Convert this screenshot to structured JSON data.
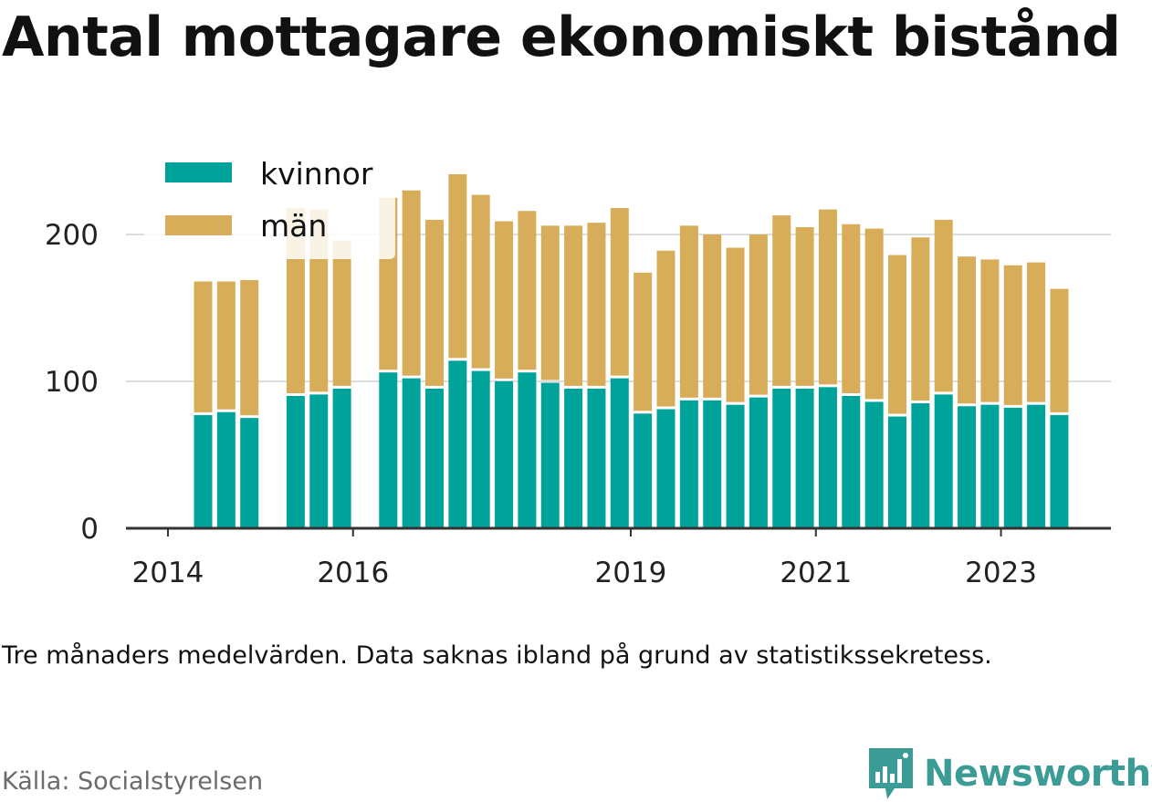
{
  "title": "Antal mottagare ekonomiskt bistånd",
  "note": "Tre månaders medelvärden. Data saknas ibland på grund av statistikssekretess.",
  "source": "Källa: Socialstyrelsen",
  "brand": "Newsworthy",
  "colors": {
    "kvinnor": "#00a39a",
    "man": "#d8ad5a",
    "brand": "#3b9c96"
  },
  "chart_data": {
    "type": "bar",
    "stacked": true,
    "ylim": [
      0,
      240
    ],
    "yticks": [
      0,
      100,
      200
    ],
    "xticks": [
      "2014",
      "2016",
      "2019",
      "2021",
      "2023"
    ],
    "grid": true,
    "legend_position": "top-left",
    "categories": [
      "2014-Q2",
      "2014-Q3",
      "2014-Q4",
      "2015-Q1",
      "2015-Q2",
      "2015-Q3",
      "2015-Q4",
      "2016-Q1",
      "2016-Q2",
      "2016-Q3",
      "2016-Q4",
      "2017-Q1",
      "2017-Q2",
      "2017-Q3",
      "2017-Q4",
      "2018-Q1",
      "2018-Q2",
      "2018-Q3",
      "2018-Q4",
      "2019-Q1",
      "2019-Q2",
      "2019-Q3",
      "2019-Q4",
      "2020-Q1",
      "2020-Q2",
      "2020-Q3",
      "2020-Q4",
      "2021-Q1",
      "2021-Q2",
      "2021-Q3",
      "2021-Q4",
      "2022-Q1",
      "2022-Q2",
      "2022-Q3",
      "2022-Q4",
      "2023-Q1",
      "2023-Q2",
      "2023-Q3"
    ],
    "series": [
      {
        "name": "kvinnor",
        "values": [
          78,
          80,
          76,
          null,
          91,
          92,
          96,
          null,
          107,
          103,
          96,
          115,
          108,
          101,
          107,
          100,
          96,
          96,
          103,
          79,
          82,
          88,
          88,
          85,
          90,
          96,
          96,
          97,
          91,
          87,
          77,
          86,
          92,
          84,
          85,
          83,
          85,
          78
        ]
      },
      {
        "name": "män",
        "values": [
          90,
          88,
          93,
          null,
          127,
          125,
          100,
          null,
          118,
          127,
          114,
          126,
          119,
          108,
          109,
          106,
          110,
          112,
          115,
          95,
          107,
          118,
          112,
          106,
          110,
          117,
          109,
          120,
          116,
          117,
          109,
          112,
          118,
          101,
          98,
          96,
          96,
          85
        ]
      }
    ]
  }
}
